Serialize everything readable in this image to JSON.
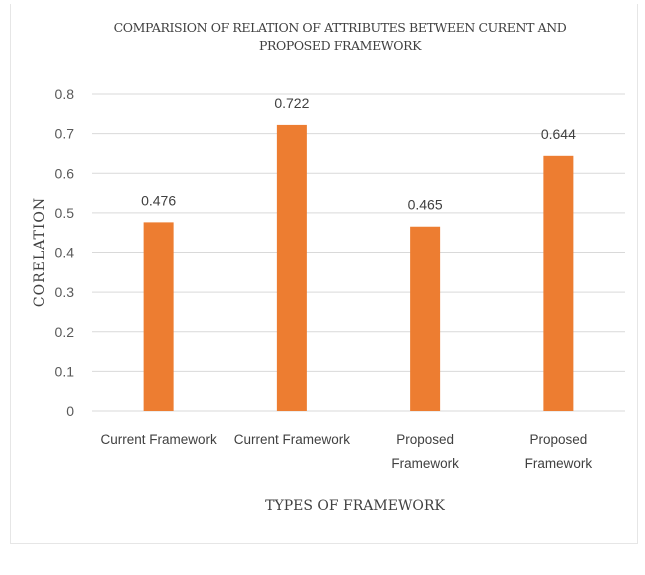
{
  "chart_data": {
    "type": "bar",
    "title_lines": [
      "COMPARISION OF RELATION OF ATTRIBUTES BETWEEN CURENT AND",
      "PROPOSED FRAMEWORK"
    ],
    "xlabel": "TYPES OF FRAMEWORK",
    "ylabel": "CORELATION",
    "categories": [
      [
        "Current Framework"
      ],
      [
        "Current Framework"
      ],
      [
        "Proposed",
        "Framework"
      ],
      [
        "Proposed",
        "Framework"
      ]
    ],
    "values": [
      0.476,
      0.722,
      0.465,
      0.644
    ],
    "data_labels": [
      "0.476",
      "0.722",
      "0.465",
      "0.644"
    ],
    "ylim": [
      0,
      0.8
    ],
    "yticks": [
      "0",
      "0.1",
      "0.2",
      "0.3",
      "0.4",
      "0.5",
      "0.6",
      "0.7",
      "0.8"
    ],
    "grid": true,
    "legend": "none",
    "bar_color": "#ED7D31",
    "grid_color": "#D9D9D9"
  }
}
